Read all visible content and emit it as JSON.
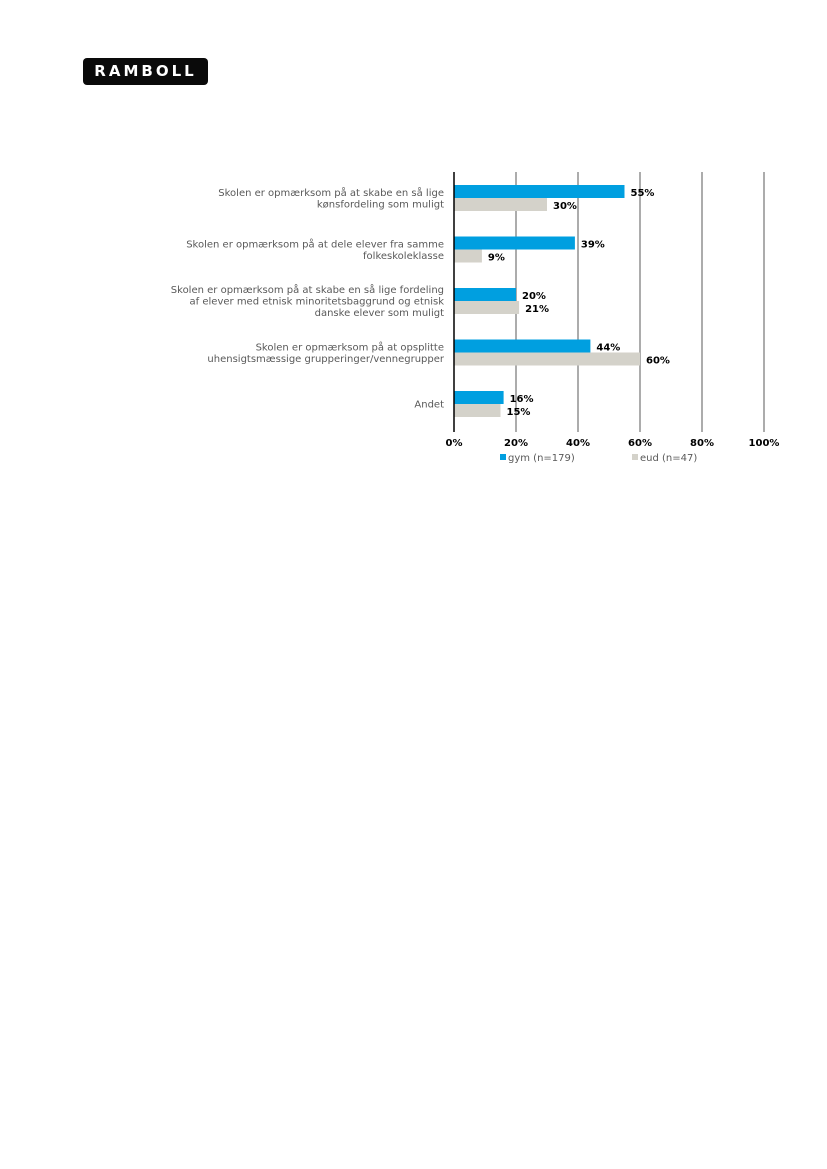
{
  "logo": {
    "text": "RAMBOLL"
  },
  "colors": {
    "gym": "#009fe0",
    "eud": "#d4d2ca",
    "gridline": "#595959",
    "axis": "#000000"
  },
  "chart_data": {
    "type": "bar",
    "orientation": "horizontal",
    "categories": [
      [
        "Skolen er opmærksom på at skabe en så lige",
        "kønsfordeling som muligt"
      ],
      [
        "Skolen er opmærksom på at dele elever fra samme",
        "folkeskoleklasse"
      ],
      [
        "Skolen er opmærksom på at skabe en så lige fordeling",
        "af elever med etnisk minoritetsbaggrund og etnisk",
        "danske elever som muligt"
      ],
      [
        "Skolen er opmærksom på at opsplitte",
        "uhensigtsmæssige grupperinger/vennegrupper"
      ],
      [
        "Andet"
      ]
    ],
    "series": [
      {
        "name": "gym (n=179)",
        "values": [
          55,
          39,
          20,
          44,
          16
        ],
        "labels": [
          "55%",
          "39%",
          "20%",
          "44%",
          "16%"
        ]
      },
      {
        "name": "eud (n=47)",
        "values": [
          30,
          9,
          21,
          60,
          15
        ],
        "labels": [
          "30%",
          "9%",
          "21%",
          "60%",
          "15%"
        ]
      }
    ],
    "xlim": [
      0,
      100
    ],
    "xticks": [
      "0%",
      "20%",
      "40%",
      "60%",
      "80%",
      "100%"
    ],
    "grid": true,
    "legend": "bottom"
  }
}
